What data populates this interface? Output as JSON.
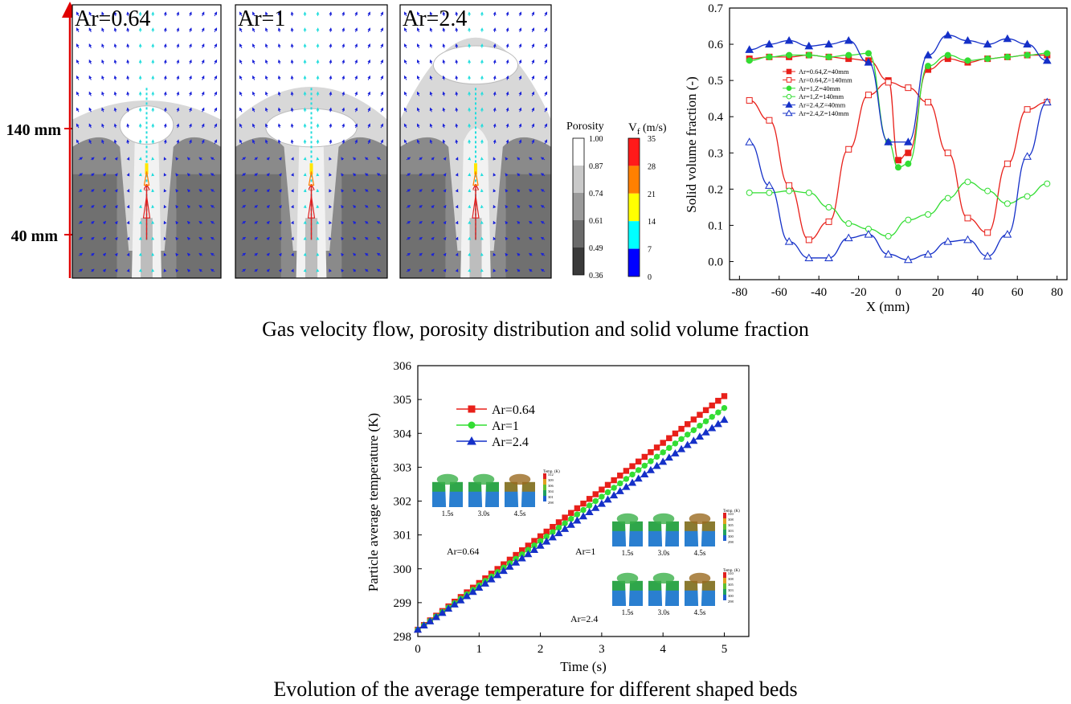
{
  "captions": {
    "top": "Gas velocity flow, porosity distribution and solid volume fraction",
    "bottom": "Evolution of the average temperature for different shaped beds"
  },
  "contour_panel": {
    "height_markers": [
      "140 mm",
      "40 mm"
    ],
    "panels": [
      {
        "label": "Ar=0.64"
      },
      {
        "label": "Ar=1"
      },
      {
        "label": "Ar=2.4"
      }
    ],
    "porosity_legend": {
      "title": "Porosity",
      "ticks": [
        "1.00",
        "0.87",
        "0.74",
        "0.61",
        "0.49",
        "0.36"
      ],
      "colors": [
        "#ffffff",
        "#c9c9c9",
        "#9a9a9a",
        "#6a6a6a",
        "#3a3a3a",
        "#111111"
      ]
    },
    "velocity_legend": {
      "title_main": "V",
      "title_sub": "f",
      "title_unit": " (m/s)",
      "ticks": [
        "35",
        "28",
        "21",
        "14",
        "7",
        "0"
      ],
      "colors": [
        "#ff1a1a",
        "#ff8000",
        "#ffff00",
        "#00ffff",
        "#0000ff"
      ]
    }
  },
  "chart_data": [
    {
      "type": "line",
      "xlabel": "X (mm)",
      "ylabel": "Solid volume fraction (-)",
      "xlim": [
        -85,
        85
      ],
      "ylim": [
        -0.05,
        0.7
      ],
      "xticks": [
        "-80",
        "-60",
        "-40",
        "-20",
        "0",
        "20",
        "40",
        "60",
        "80"
      ],
      "yticks": [
        "0.0",
        "0.1",
        "0.2",
        "0.3",
        "0.4",
        "0.5",
        "0.6",
        "0.7"
      ],
      "legend_position": "upper-left",
      "series": [
        {
          "name": "Ar=0.64,Z=40mm",
          "color": "#e8201a",
          "marker": "square-filled",
          "x": [
            -75,
            -65,
            -55,
            -45,
            -35,
            -25,
            -15,
            -5,
            0,
            5,
            15,
            25,
            35,
            45,
            55,
            65,
            75
          ],
          "y": [
            0.56,
            0.565,
            0.565,
            0.57,
            0.565,
            0.56,
            0.555,
            0.5,
            0.28,
            0.3,
            0.53,
            0.56,
            0.55,
            0.56,
            0.565,
            0.57,
            0.57
          ]
        },
        {
          "name": "Ar=0.64,Z=140mm",
          "color": "#e8201a",
          "marker": "square-open",
          "x": [
            -75,
            -65,
            -55,
            -45,
            -35,
            -25,
            -15,
            -5,
            5,
            15,
            25,
            35,
            45,
            55,
            65,
            75
          ],
          "y": [
            0.445,
            0.39,
            0.21,
            0.06,
            0.11,
            0.31,
            0.46,
            0.495,
            0.48,
            0.44,
            0.3,
            0.12,
            0.08,
            0.27,
            0.42,
            0.44
          ]
        },
        {
          "name": "Ar=1,Z=40mm",
          "color": "#33dd33",
          "marker": "circle-filled",
          "x": [
            -75,
            -65,
            -55,
            -45,
            -35,
            -25,
            -15,
            -5,
            0,
            5,
            15,
            25,
            35,
            45,
            55,
            65,
            75
          ],
          "y": [
            0.555,
            0.565,
            0.57,
            0.57,
            0.565,
            0.57,
            0.575,
            0.33,
            0.26,
            0.27,
            0.54,
            0.57,
            0.555,
            0.56,
            0.565,
            0.57,
            0.575
          ]
        },
        {
          "name": "Ar=1,Z=140mm",
          "color": "#33dd33",
          "marker": "circle-open",
          "x": [
            -75,
            -65,
            -55,
            -45,
            -35,
            -25,
            -15,
            -5,
            5,
            15,
            25,
            35,
            45,
            55,
            65,
            75
          ],
          "y": [
            0.19,
            0.19,
            0.195,
            0.19,
            0.15,
            0.105,
            0.09,
            0.07,
            0.115,
            0.13,
            0.175,
            0.22,
            0.195,
            0.16,
            0.18,
            0.215
          ]
        },
        {
          "name": "Ar=2.4,Z=40mm",
          "color": "#1530c8",
          "marker": "triangle-filled",
          "x": [
            -75,
            -65,
            -55,
            -45,
            -35,
            -25,
            -15,
            -5,
            5,
            15,
            25,
            35,
            45,
            55,
            65,
            75
          ],
          "y": [
            0.585,
            0.6,
            0.61,
            0.595,
            0.6,
            0.61,
            0.55,
            0.33,
            0.33,
            0.57,
            0.625,
            0.61,
            0.6,
            0.615,
            0.6,
            0.555
          ]
        },
        {
          "name": "Ar=2.4,Z=140mm",
          "color": "#1530c8",
          "marker": "triangle-open",
          "x": [
            -75,
            -65,
            -55,
            -45,
            -35,
            -25,
            -15,
            -5,
            5,
            15,
            25,
            35,
            45,
            55,
            65,
            75
          ],
          "y": [
            0.33,
            0.21,
            0.055,
            0.01,
            0.01,
            0.065,
            0.075,
            0.02,
            0.005,
            0.02,
            0.055,
            0.06,
            0.015,
            0.075,
            0.29,
            0.44
          ]
        }
      ]
    },
    {
      "type": "line",
      "xlabel": "Time (s)",
      "ylabel": "Particle average temperature (K)",
      "xlim": [
        0,
        5.4
      ],
      "ylim": [
        298,
        306
      ],
      "xticks": [
        "0",
        "1",
        "2",
        "3",
        "4",
        "5"
      ],
      "yticks": [
        "298",
        "299",
        "300",
        "301",
        "302",
        "303",
        "304",
        "305",
        "306"
      ],
      "legend_position": "upper-left",
      "series": [
        {
          "name": "Ar=0.64",
          "color": "#e8201a",
          "marker": "square-filled",
          "start": [
            0,
            298.2
          ],
          "end": [
            5,
            305.1
          ]
        },
        {
          "name": "Ar=1",
          "color": "#33dd33",
          "marker": "circle-filled",
          "start": [
            0,
            298.2
          ],
          "end": [
            5,
            304.75
          ]
        },
        {
          "name": "Ar=2.4",
          "color": "#1530c8",
          "marker": "triangle-filled",
          "start": [
            0,
            298.2
          ],
          "end": [
            5,
            304.4
          ]
        }
      ],
      "insets": [
        {
          "label": "Ar=0.64",
          "frames": [
            "1.5s",
            "3.0s",
            "4.5s"
          ],
          "colorbar_title": "Temp. (K)",
          "colorbar_ticks": [
            "312",
            "309",
            "306",
            "304",
            "301",
            "298"
          ]
        },
        {
          "label": "Ar=1",
          "frames": [
            "1.5s",
            "3.0s",
            "4.5s"
          ],
          "colorbar_title": "Temp. (K)",
          "colorbar_ticks": [
            "310",
            "308",
            "305",
            "303",
            "300",
            "298"
          ]
        },
        {
          "label": "Ar=2.4",
          "frames": [
            "1.5s",
            "3.0s",
            "4.5s"
          ],
          "colorbar_title": "Temp. (K)",
          "colorbar_ticks": [
            "310",
            "308",
            "305",
            "303",
            "300",
            "298"
          ]
        }
      ]
    }
  ]
}
